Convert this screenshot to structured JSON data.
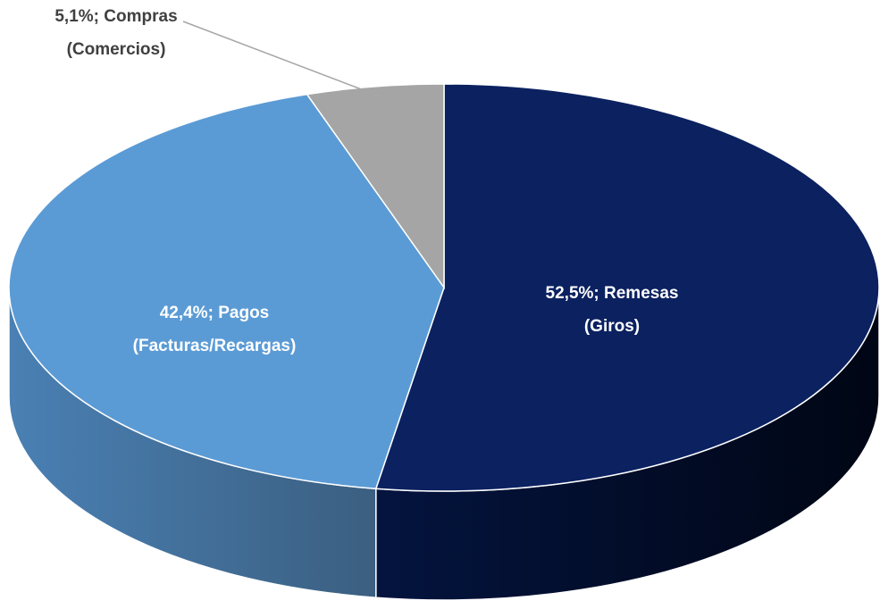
{
  "chart_data": {
    "type": "pie3d",
    "categories": [
      "Remesas (Giros)",
      "Pagos (Facturas/Recargas)",
      "Compras (Comercios)"
    ],
    "values": [
      52.5,
      42.4,
      5.1
    ],
    "value_labels": [
      "52,5%;",
      "42,4%;",
      "5,1%;"
    ],
    "colors": [
      "#0b2160",
      "#5b9bd5",
      "#a5a5a5"
    ]
  }
}
